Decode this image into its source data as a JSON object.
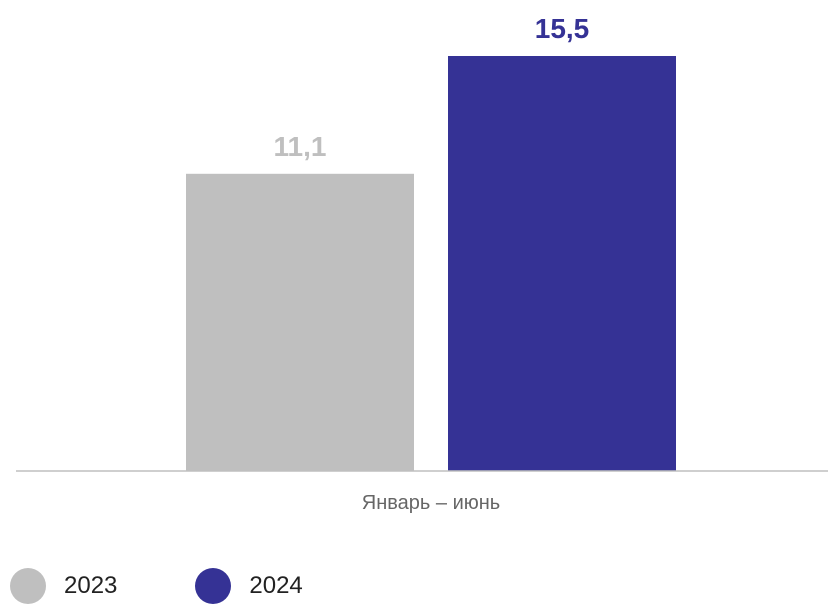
{
  "chart_data": {
    "type": "bar",
    "categories": [
      "Январь – июнь"
    ],
    "series": [
      {
        "name": "2023",
        "values": [
          11.1
        ],
        "label": "11,1",
        "color": "#bfbfbf"
      },
      {
        "name": "2024",
        "values": [
          15.5
        ],
        "label": "15,5",
        "color": "#353295"
      }
    ],
    "ylim": [
      0,
      15.5
    ],
    "grid": false,
    "legend": "bottom-left",
    "axis_color": "#bfbfbf",
    "category_label_color": "#666666"
  }
}
